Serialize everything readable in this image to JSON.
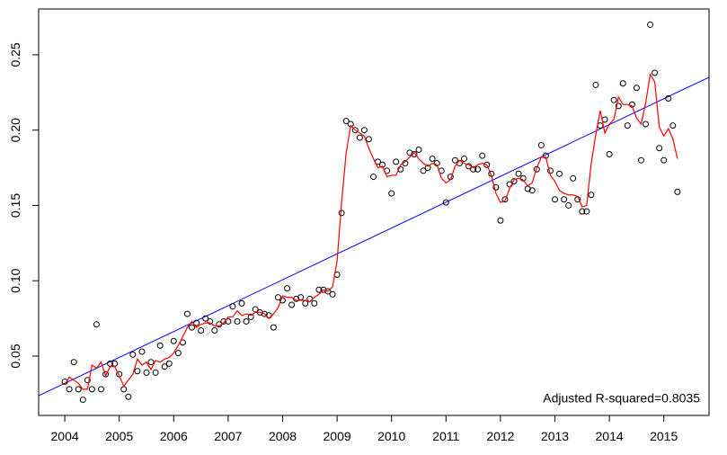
{
  "chart_data": {
    "type": "scatter",
    "annotation": "Adjusted R-squared=0.8035",
    "annotation_color": "#0000ff",
    "xlim": [
      2003.52,
      2015.83
    ],
    "ylim": [
      0.0106,
      0.2804
    ],
    "xticks": [
      2004,
      2005,
      2006,
      2007,
      2008,
      2009,
      2010,
      2011,
      2012,
      2013,
      2014,
      2015
    ],
    "yticks": [
      0.05,
      {
        "value": 0.1,
        "label": "0.10"
      },
      0.15,
      {
        "value": 0.2,
        "label": "0.20"
      },
      0.25
    ],
    "x": [
      2004.0,
      2004.083,
      2004.167,
      2004.25,
      2004.333,
      2004.417,
      2004.5,
      2004.583,
      2004.667,
      2004.75,
      2004.833,
      2004.917,
      2005.0,
      2005.083,
      2005.167,
      2005.25,
      2005.333,
      2005.417,
      2005.5,
      2005.583,
      2005.667,
      2005.75,
      2005.833,
      2005.917,
      2006.0,
      2006.083,
      2006.167,
      2006.25,
      2006.333,
      2006.417,
      2006.5,
      2006.583,
      2006.667,
      2006.75,
      2006.833,
      2006.917,
      2007.0,
      2007.083,
      2007.167,
      2007.25,
      2007.333,
      2007.417,
      2007.5,
      2007.583,
      2007.667,
      2007.75,
      2007.833,
      2007.917,
      2008.0,
      2008.083,
      2008.167,
      2008.25,
      2008.333,
      2008.417,
      2008.5,
      2008.583,
      2008.667,
      2008.75,
      2008.833,
      2008.917,
      2009.0,
      2009.083,
      2009.167,
      2009.25,
      2009.333,
      2009.417,
      2009.5,
      2009.583,
      2009.667,
      2009.75,
      2009.833,
      2009.917,
      2010.0,
      2010.083,
      2010.167,
      2010.25,
      2010.333,
      2010.417,
      2010.5,
      2010.583,
      2010.667,
      2010.75,
      2010.833,
      2010.917,
      2011.0,
      2011.083,
      2011.167,
      2011.25,
      2011.333,
      2011.417,
      2011.5,
      2011.583,
      2011.667,
      2011.75,
      2011.833,
      2011.917,
      2012.0,
      2012.083,
      2012.167,
      2012.25,
      2012.333,
      2012.417,
      2012.5,
      2012.583,
      2012.667,
      2012.75,
      2012.833,
      2012.917,
      2013.0,
      2013.083,
      2013.167,
      2013.25,
      2013.333,
      2013.417,
      2013.5,
      2013.583,
      2013.667,
      2013.75,
      2013.833,
      2013.917,
      2014.0,
      2014.083,
      2014.167,
      2014.25,
      2014.333,
      2014.417,
      2014.5,
      2014.583,
      2014.667,
      2014.75,
      2014.833,
      2014.917,
      2015.0,
      2015.083,
      2015.167,
      2015.25
    ],
    "series": [
      {
        "style": "points",
        "color": "#000000",
        "values": [
          0.033,
          0.028,
          0.046,
          0.028,
          0.021,
          0.034,
          0.028,
          0.071,
          0.028,
          0.038,
          0.045,
          0.045,
          0.038,
          0.028,
          0.023,
          0.051,
          0.04,
          0.053,
          0.039,
          0.046,
          0.039,
          0.057,
          0.043,
          0.045,
          0.06,
          0.052,
          0.059,
          0.078,
          0.069,
          0.072,
          0.067,
          0.075,
          0.073,
          0.067,
          0.071,
          0.073,
          0.073,
          0.083,
          0.073,
          0.085,
          0.073,
          0.076,
          0.081,
          0.079,
          0.078,
          0.077,
          0.069,
          0.089,
          0.087,
          0.095,
          0.084,
          0.088,
          0.089,
          0.085,
          0.088,
          0.085,
          0.094,
          0.094,
          0.093,
          0.091,
          0.104,
          0.145,
          0.206,
          0.204,
          0.2,
          0.195,
          0.2,
          0.194,
          0.169,
          0.179,
          0.177,
          0.173,
          0.158,
          0.179,
          0.174,
          0.178,
          0.185,
          0.184,
          0.187,
          0.173,
          0.175,
          0.181,
          0.178,
          0.173,
          0.152,
          0.169,
          0.18,
          0.178,
          0.181,
          0.176,
          0.174,
          0.174,
          0.183,
          0.177,
          0.171,
          0.162,
          0.14,
          0.154,
          0.164,
          0.166,
          0.171,
          0.168,
          0.161,
          0.16,
          0.174,
          0.19,
          0.183,
          0.173,
          0.154,
          0.171,
          0.154,
          0.15,
          0.168,
          0.154,
          0.146,
          0.146,
          0.157,
          0.23,
          0.203,
          0.207,
          0.184,
          0.22,
          0.216,
          0.231,
          0.203,
          0.217,
          0.228,
          0.18,
          0.204,
          0.27,
          0.238,
          0.188,
          0.18,
          0.221,
          0.203,
          0.159
        ]
      },
      {
        "style": "line",
        "color": "#ff0000",
        "values": [
          0.031,
          0.036,
          0.034,
          0.032,
          0.028,
          0.028,
          0.044,
          0.042,
          0.046,
          0.037,
          0.043,
          0.043,
          0.037,
          0.03,
          0.034,
          0.038,
          0.048,
          0.044,
          0.046,
          0.041,
          0.047,
          0.046,
          0.048,
          0.049,
          0.052,
          0.057,
          0.063,
          0.069,
          0.073,
          0.069,
          0.071,
          0.072,
          0.072,
          0.07,
          0.07,
          0.072,
          0.076,
          0.076,
          0.08,
          0.077,
          0.078,
          0.077,
          0.079,
          0.079,
          0.078,
          0.075,
          0.078,
          0.082,
          0.09,
          0.089,
          0.089,
          0.087,
          0.087,
          0.087,
          0.086,
          0.089,
          0.091,
          0.094,
          0.093,
          0.096,
          0.113,
          0.152,
          0.185,
          0.203,
          0.2,
          0.198,
          0.196,
          0.188,
          0.181,
          0.175,
          0.176,
          0.169,
          0.17,
          0.17,
          0.177,
          0.179,
          0.182,
          0.185,
          0.181,
          0.178,
          0.176,
          0.178,
          0.177,
          0.168,
          0.165,
          0.167,
          0.176,
          0.18,
          0.178,
          0.177,
          0.175,
          0.177,
          0.178,
          0.177,
          0.17,
          0.158,
          0.152,
          0.153,
          0.161,
          0.167,
          0.168,
          0.167,
          0.163,
          0.165,
          0.175,
          0.182,
          0.182,
          0.17,
          0.166,
          0.16,
          0.158,
          0.157,
          0.157,
          0.156,
          0.149,
          0.15,
          0.178,
          0.197,
          0.213,
          0.198,
          0.204,
          0.207,
          0.222,
          0.217,
          0.217,
          0.216,
          0.208,
          0.204,
          0.218,
          0.237,
          0.232,
          0.202,
          0.196,
          0.201,
          0.194,
          0.181
        ]
      }
    ],
    "fit": {
      "color": "#0000ff",
      "x": [
        2003.52,
        2015.83
      ],
      "values": [
        0.0237,
        0.2351
      ]
    }
  }
}
